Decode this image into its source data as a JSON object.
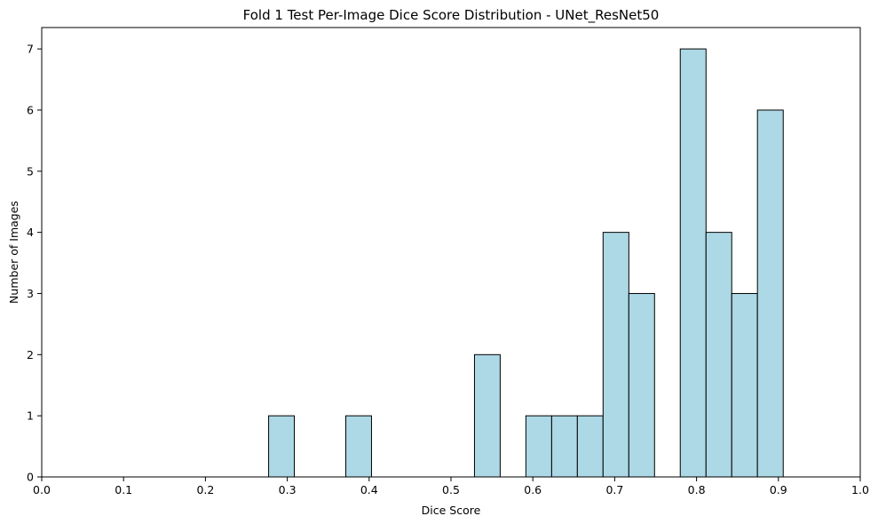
{
  "chart_data": {
    "type": "bar",
    "title": "Fold 1 Test Per-Image Dice Score Distribution - UNet_ResNet50",
    "xlabel": "Dice Score",
    "ylabel": "Number of Images",
    "xlim": [
      0.0,
      1.0
    ],
    "ylim": [
      0,
      7.35
    ],
    "xticks": [
      "0.0",
      "0.1",
      "0.2",
      "0.3",
      "0.4",
      "0.5",
      "0.6",
      "0.7",
      "0.8",
      "0.9",
      "1.0"
    ],
    "yticks": [
      "0",
      "1",
      "2",
      "3",
      "4",
      "5",
      "6",
      "7"
    ],
    "bars": [
      {
        "x0": 0.2772,
        "x1": 0.3086,
        "count": 1
      },
      {
        "x0": 0.3086,
        "x1": 0.3401,
        "count": 0
      },
      {
        "x0": 0.3401,
        "x1": 0.3715,
        "count": 0
      },
      {
        "x0": 0.3715,
        "x1": 0.4029,
        "count": 1
      },
      {
        "x0": 0.4029,
        "x1": 0.4344,
        "count": 0
      },
      {
        "x0": 0.4344,
        "x1": 0.4658,
        "count": 0
      },
      {
        "x0": 0.4658,
        "x1": 0.4972,
        "count": 0
      },
      {
        "x0": 0.4972,
        "x1": 0.5287,
        "count": 0
      },
      {
        "x0": 0.5287,
        "x1": 0.5601,
        "count": 2
      },
      {
        "x0": 0.5601,
        "x1": 0.5915,
        "count": 0
      },
      {
        "x0": 0.5915,
        "x1": 0.623,
        "count": 1
      },
      {
        "x0": 0.623,
        "x1": 0.6544,
        "count": 1
      },
      {
        "x0": 0.6544,
        "x1": 0.6858,
        "count": 1
      },
      {
        "x0": 0.6858,
        "x1": 0.7173,
        "count": 4
      },
      {
        "x0": 0.7173,
        "x1": 0.7487,
        "count": 3
      },
      {
        "x0": 0.7487,
        "x1": 0.7801,
        "count": 0
      },
      {
        "x0": 0.7801,
        "x1": 0.8116,
        "count": 7
      },
      {
        "x0": 0.8116,
        "x1": 0.843,
        "count": 4
      },
      {
        "x0": 0.843,
        "x1": 0.8744,
        "count": 3
      },
      {
        "x0": 0.8744,
        "x1": 0.9059,
        "count": 6
      }
    ],
    "colors": {
      "bar_fill": "#add8e6",
      "bar_edge": "#000000"
    },
    "grid": false,
    "legend": "none"
  }
}
